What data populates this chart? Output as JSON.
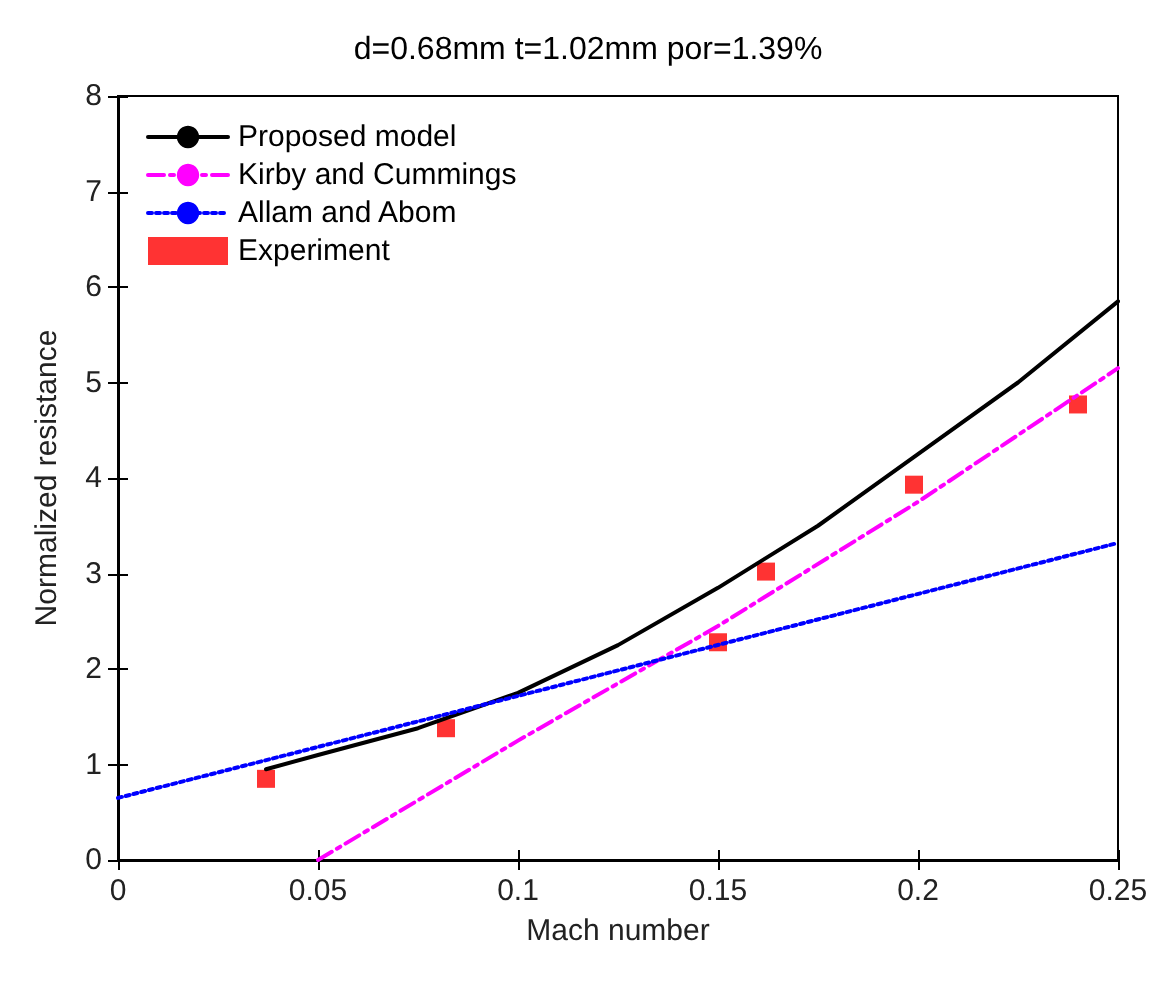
{
  "chart_data": {
    "type": "line",
    "title": "d=0.68mm t=1.02mm por=1.39%",
    "xlabel": "Mach number",
    "ylabel": "Normalized resistance",
    "xlim": [
      0,
      0.25
    ],
    "xticks": [
      0,
      0.05,
      0.1,
      0.15,
      0.2,
      0.25
    ],
    "ylim": [
      0,
      8
    ],
    "yticks": [
      0,
      1,
      2,
      3,
      4,
      5,
      6,
      7,
      8
    ],
    "grid": false,
    "legend": "top left",
    "series": [
      {
        "name": "Proposed model",
        "color": "#000000",
        "line_style": "solid",
        "marker": "none",
        "x": [
          0.037,
          0.05,
          0.075,
          0.1,
          0.125,
          0.15,
          0.175,
          0.2,
          0.225,
          0.25
        ],
        "values": [
          0.95,
          1.1,
          1.38,
          1.75,
          2.25,
          2.85,
          3.5,
          4.25,
          5.0,
          5.85
        ]
      },
      {
        "name": "Kirby and Cummings",
        "color": "#ff00ff",
        "line_style": "dashed",
        "marker": "none",
        "x": [
          0.05,
          0.1,
          0.15,
          0.2,
          0.25
        ],
        "values": [
          0,
          1.25,
          2.45,
          3.75,
          5.15
        ]
      },
      {
        "name": "Allam and Abom",
        "color": "#0000ff",
        "line_style": "dotted",
        "marker": "none",
        "x": [
          0,
          0.25
        ],
        "values": [
          0.65,
          3.32
        ]
      },
      {
        "name": "Experiment",
        "type": "scatter",
        "color": "#ff0000",
        "marker": "square",
        "x": [
          0.037,
          0.082,
          0.15,
          0.162,
          0.199,
          0.24
        ],
        "values": [
          0.85,
          1.38,
          2.28,
          3.02,
          3.93,
          4.77
        ]
      }
    ]
  }
}
